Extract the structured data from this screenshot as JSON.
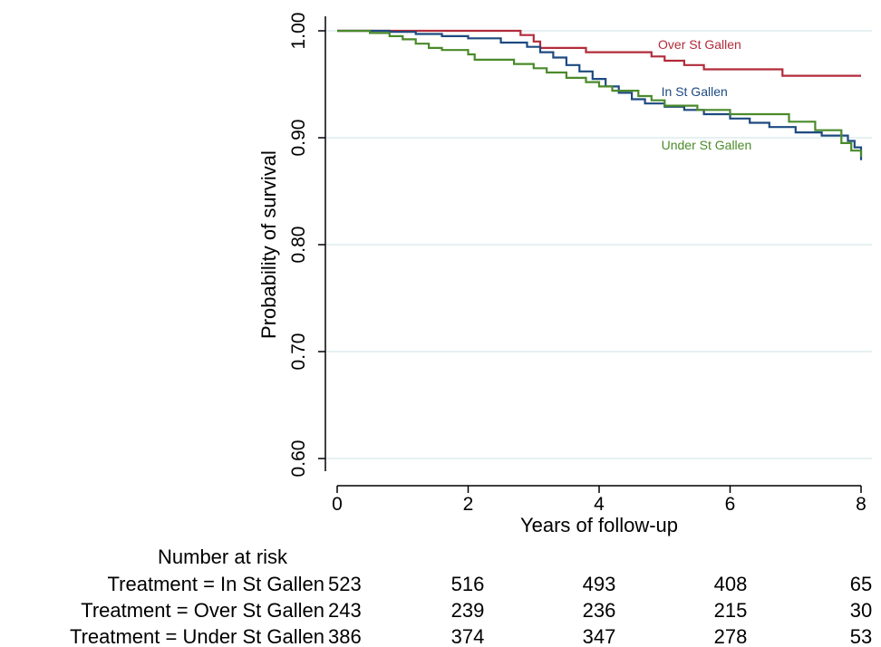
{
  "chart_data": {
    "type": "line",
    "title": "",
    "xlabel": "Years of follow-up",
    "ylabel": "Probability of survival",
    "xlim": [
      0,
      8
    ],
    "ylim": [
      0.6,
      1.0
    ],
    "x_ticks": [
      0,
      2,
      4,
      6,
      8
    ],
    "x_tick_labels": [
      "0",
      "2",
      "4",
      "6",
      "8"
    ],
    "y_ticks": [
      0.6,
      0.7,
      0.8,
      0.9,
      1.0
    ],
    "y_tick_labels": [
      "0.60",
      "0.70",
      "0.80",
      "0.90",
      "1.00"
    ],
    "grid": "horizontal",
    "series": [
      {
        "name": "Over St Gallen",
        "color": "#b22b3a",
        "label_at": [
          4.9,
          0.983
        ],
        "points": [
          [
            0,
            1.0
          ],
          [
            2.8,
            1.0
          ],
          [
            2.8,
            0.996
          ],
          [
            3.0,
            0.996
          ],
          [
            3.0,
            0.99
          ],
          [
            3.1,
            0.99
          ],
          [
            3.1,
            0.984
          ],
          [
            3.8,
            0.984
          ],
          [
            3.8,
            0.98
          ],
          [
            4.8,
            0.98
          ],
          [
            4.8,
            0.976
          ],
          [
            5.0,
            0.976
          ],
          [
            5.0,
            0.972
          ],
          [
            5.3,
            0.972
          ],
          [
            5.3,
            0.968
          ],
          [
            5.6,
            0.968
          ],
          [
            5.6,
            0.964
          ],
          [
            6.8,
            0.964
          ],
          [
            6.8,
            0.958
          ],
          [
            8.0,
            0.958
          ]
        ]
      },
      {
        "name": "In St Gallen",
        "color": "#1d4a80",
        "label_at": [
          4.95,
          0.939
        ],
        "points": [
          [
            0,
            1.0
          ],
          [
            0.8,
            1.0
          ],
          [
            0.8,
            0.999
          ],
          [
            1.2,
            0.999
          ],
          [
            1.2,
            0.997
          ],
          [
            1.6,
            0.997
          ],
          [
            1.6,
            0.995
          ],
          [
            2.0,
            0.995
          ],
          [
            2.0,
            0.993
          ],
          [
            2.5,
            0.993
          ],
          [
            2.5,
            0.989
          ],
          [
            2.9,
            0.989
          ],
          [
            2.9,
            0.985
          ],
          [
            3.1,
            0.985
          ],
          [
            3.1,
            0.98
          ],
          [
            3.3,
            0.98
          ],
          [
            3.3,
            0.975
          ],
          [
            3.5,
            0.975
          ],
          [
            3.5,
            0.968
          ],
          [
            3.7,
            0.968
          ],
          [
            3.7,
            0.962
          ],
          [
            3.9,
            0.962
          ],
          [
            3.9,
            0.955
          ],
          [
            4.1,
            0.955
          ],
          [
            4.1,
            0.948
          ],
          [
            4.3,
            0.948
          ],
          [
            4.3,
            0.942
          ],
          [
            4.5,
            0.942
          ],
          [
            4.5,
            0.936
          ],
          [
            4.7,
            0.936
          ],
          [
            4.7,
            0.932
          ],
          [
            5.0,
            0.932
          ],
          [
            5.0,
            0.929
          ],
          [
            5.3,
            0.929
          ],
          [
            5.3,
            0.926
          ],
          [
            5.6,
            0.926
          ],
          [
            5.6,
            0.922
          ],
          [
            6.0,
            0.922
          ],
          [
            6.0,
            0.918
          ],
          [
            6.3,
            0.918
          ],
          [
            6.3,
            0.914
          ],
          [
            6.6,
            0.914
          ],
          [
            6.6,
            0.91
          ],
          [
            7.0,
            0.91
          ],
          [
            7.0,
            0.905
          ],
          [
            7.4,
            0.905
          ],
          [
            7.4,
            0.902
          ],
          [
            7.8,
            0.902
          ],
          [
            7.8,
            0.897
          ],
          [
            7.9,
            0.897
          ],
          [
            7.9,
            0.891
          ],
          [
            8.0,
            0.891
          ],
          [
            8.0,
            0.879
          ]
        ]
      },
      {
        "name": "Under St Gallen",
        "color": "#4a8a2a",
        "label_at": [
          4.95,
          0.889
        ],
        "points": [
          [
            0,
            1.0
          ],
          [
            0.5,
            1.0
          ],
          [
            0.5,
            0.998
          ],
          [
            0.8,
            0.998
          ],
          [
            0.8,
            0.995
          ],
          [
            1.0,
            0.995
          ],
          [
            1.0,
            0.992
          ],
          [
            1.2,
            0.992
          ],
          [
            1.2,
            0.988
          ],
          [
            1.4,
            0.988
          ],
          [
            1.4,
            0.984
          ],
          [
            1.6,
            0.984
          ],
          [
            1.6,
            0.982
          ],
          [
            2.0,
            0.982
          ],
          [
            2.0,
            0.978
          ],
          [
            2.1,
            0.978
          ],
          [
            2.1,
            0.973
          ],
          [
            2.7,
            0.973
          ],
          [
            2.7,
            0.969
          ],
          [
            3.0,
            0.969
          ],
          [
            3.0,
            0.965
          ],
          [
            3.2,
            0.965
          ],
          [
            3.2,
            0.961
          ],
          [
            3.5,
            0.961
          ],
          [
            3.5,
            0.956
          ],
          [
            3.8,
            0.956
          ],
          [
            3.8,
            0.952
          ],
          [
            4.0,
            0.952
          ],
          [
            4.0,
            0.948
          ],
          [
            4.2,
            0.948
          ],
          [
            4.2,
            0.944
          ],
          [
            4.6,
            0.944
          ],
          [
            4.6,
            0.939
          ],
          [
            4.8,
            0.939
          ],
          [
            4.8,
            0.935
          ],
          [
            5.0,
            0.935
          ],
          [
            5.0,
            0.93
          ],
          [
            5.5,
            0.93
          ],
          [
            5.5,
            0.926
          ],
          [
            6.0,
            0.926
          ],
          [
            6.0,
            0.922
          ],
          [
            6.9,
            0.922
          ],
          [
            6.9,
            0.915
          ],
          [
            7.3,
            0.915
          ],
          [
            7.3,
            0.907
          ],
          [
            7.7,
            0.907
          ],
          [
            7.7,
            0.895
          ],
          [
            7.85,
            0.895
          ],
          [
            7.85,
            0.888
          ],
          [
            8.0,
            0.888
          ],
          [
            8.0,
            0.882
          ]
        ]
      }
    ],
    "risk_table": {
      "title": "Number at risk",
      "rows": [
        {
          "label": "Treatment = In St Gallen",
          "values": [
            "523",
            "516",
            "493",
            "408",
            "65"
          ]
        },
        {
          "label": "Treatment = Over St Gallen",
          "values": [
            "243",
            "239",
            "236",
            "215",
            "30"
          ]
        },
        {
          "label": "Treatment = Under St Gallen",
          "values": [
            "386",
            "374",
            "347",
            "278",
            "53"
          ]
        }
      ]
    }
  }
}
